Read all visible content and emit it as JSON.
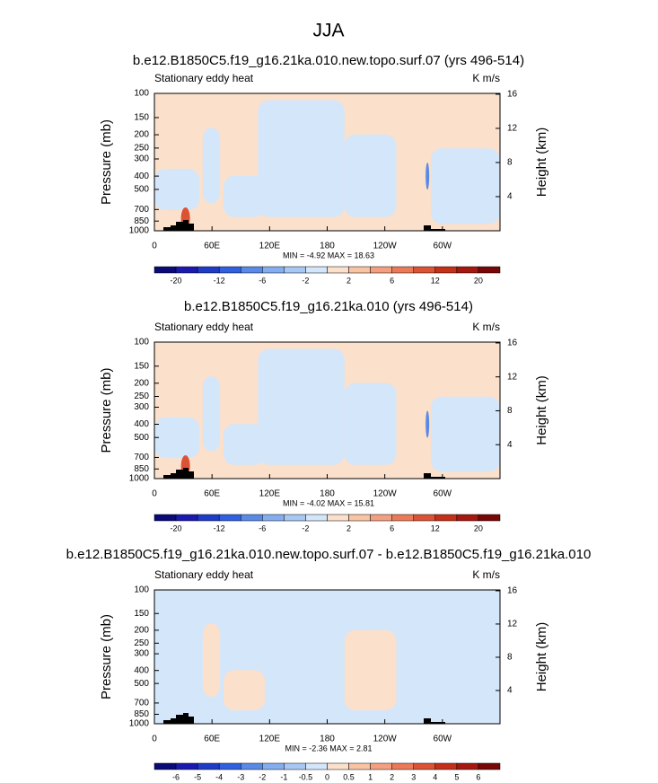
{
  "title": "JJA",
  "chart_data": [
    {
      "type": "contour",
      "title": "b.e12.B1850C5.f19_g16.21ka.010.new.topo.surf.07 (yrs 496-514)",
      "left_label": "Stationary eddy heat",
      "right_label": "K m/s",
      "y_label": "Pressure (mb)",
      "y2_label": "Height (km)",
      "log_y": true,
      "xlim": [
        0,
        360
      ],
      "xticks": [
        0,
        {
          "value": 60,
          "label": "60E"
        },
        {
          "value": 120,
          "label": "120E"
        },
        180,
        {
          "value": 240,
          "label": "120W"
        },
        {
          "value": 300,
          "label": "60W"
        }
      ],
      "ylim": [
        1000,
        100
      ],
      "yticks": [
        100,
        150,
        200,
        250,
        300,
        400,
        500,
        700,
        850,
        1000
      ],
      "y2lim": [
        0,
        16.1
      ],
      "y2ticks": [
        4,
        8,
        12,
        16
      ],
      "stats": "MIN = -4.92  MAX = 18.63",
      "colorbar": {
        "colors": [
          "#0a0a78",
          "#1a1ab0",
          "#1e3cc8",
          "#3060e0",
          "#5a8ae8",
          "#84aef0",
          "#a8c8f4",
          "#d4e6fa",
          "#fbe0cc",
          "#f8c4a4",
          "#f4a080",
          "#ec7a58",
          "#dc5234",
          "#c43018",
          "#a41810",
          "#780808"
        ],
        "labels": [
          -20,
          -12,
          -6,
          -2,
          2,
          6,
          12,
          20
        ]
      }
    },
    {
      "type": "contour",
      "title": "b.e12.B1850C5.f19_g16.21ka.010 (yrs 496-514)",
      "left_label": "Stationary eddy heat",
      "right_label": "K m/s",
      "y_label": "Pressure (mb)",
      "y2_label": "Height (km)",
      "log_y": true,
      "xlim": [
        0,
        360
      ],
      "xticks": [
        0,
        {
          "value": 60,
          "label": "60E"
        },
        {
          "value": 120,
          "label": "120E"
        },
        180,
        {
          "value": 240,
          "label": "120W"
        },
        {
          "value": 300,
          "label": "60W"
        }
      ],
      "ylim": [
        1000,
        100
      ],
      "yticks": [
        100,
        150,
        200,
        250,
        300,
        400,
        500,
        700,
        850,
        1000
      ],
      "y2lim": [
        0,
        16.1
      ],
      "y2ticks": [
        4,
        8,
        12,
        16
      ],
      "stats": "MIN = -4.02  MAX = 15.81",
      "colorbar": {
        "colors": [
          "#0a0a78",
          "#1a1ab0",
          "#1e3cc8",
          "#3060e0",
          "#5a8ae8",
          "#84aef0",
          "#a8c8f4",
          "#d4e6fa",
          "#fbe0cc",
          "#f8c4a4",
          "#f4a080",
          "#ec7a58",
          "#dc5234",
          "#c43018",
          "#a41810",
          "#780808"
        ],
        "labels": [
          -20,
          -12,
          -6,
          -2,
          2,
          6,
          12,
          20
        ]
      }
    },
    {
      "type": "contour",
      "title": "b.e12.B1850C5.f19_g16.21ka.010.new.topo.surf.07 - b.e12.B1850C5.f19_g16.21ka.010",
      "left_label": "Stationary eddy heat",
      "right_label": "K m/s",
      "y_label": "Pressure (mb)",
      "y2_label": "Height (km)",
      "log_y": true,
      "xlim": [
        0,
        360
      ],
      "xticks": [
        0,
        {
          "value": 60,
          "label": "60E"
        },
        {
          "value": 120,
          "label": "120E"
        },
        180,
        {
          "value": 240,
          "label": "120W"
        },
        {
          "value": 300,
          "label": "60W"
        }
      ],
      "ylim": [
        1000,
        100
      ],
      "yticks": [
        100,
        150,
        200,
        250,
        300,
        400,
        500,
        700,
        850,
        1000
      ],
      "y2lim": [
        0,
        16.1
      ],
      "y2ticks": [
        4,
        8,
        12,
        16
      ],
      "stats": "MIN = -2.36  MAX = 2.81",
      "colorbar": {
        "colors": [
          "#0a0a78",
          "#1a1ab0",
          "#1e3cc8",
          "#3060e0",
          "#5a8ae8",
          "#84aef0",
          "#a8c8f4",
          "#d4e6fa",
          "#fbe0cc",
          "#f8c4a4",
          "#f4a080",
          "#ec7a58",
          "#dc5234",
          "#c43018",
          "#a41810",
          "#780808"
        ],
        "labels": [
          -6,
          -5,
          -4,
          -3,
          -2,
          -1,
          -0.5,
          0,
          0.5,
          1,
          2,
          3,
          4,
          5,
          6
        ]
      }
    }
  ]
}
